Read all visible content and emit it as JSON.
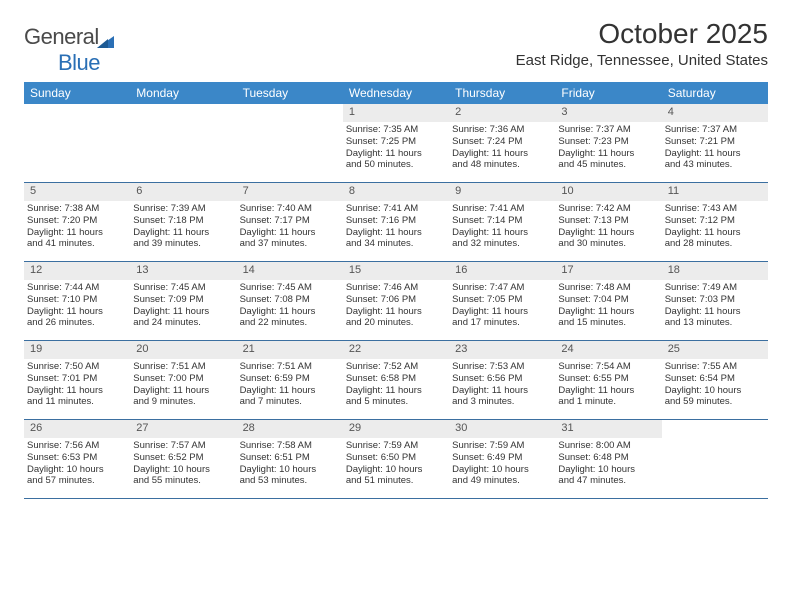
{
  "colors": {
    "header_bg": "#3b87c8",
    "header_text": "#ffffff",
    "daynum_bg": "#ececec",
    "week_border": "#3b6fa0",
    "body_text": "#333333",
    "logo_gray": "#4a4a4a",
    "logo_blue": "#2a6fb5",
    "background": "#ffffff"
  },
  "logo": {
    "text_part1": "General",
    "text_part2": "Blue"
  },
  "title": "October 2025",
  "location": "East Ridge, Tennessee, United States",
  "weekdays": [
    "Sunday",
    "Monday",
    "Tuesday",
    "Wednesday",
    "Thursday",
    "Friday",
    "Saturday"
  ],
  "weeks": [
    [
      null,
      null,
      null,
      {
        "n": "1",
        "sr": "Sunrise: 7:35 AM",
        "ss": "Sunset: 7:25 PM",
        "dl1": "Daylight: 11 hours",
        "dl2": "and 50 minutes."
      },
      {
        "n": "2",
        "sr": "Sunrise: 7:36 AM",
        "ss": "Sunset: 7:24 PM",
        "dl1": "Daylight: 11 hours",
        "dl2": "and 48 minutes."
      },
      {
        "n": "3",
        "sr": "Sunrise: 7:37 AM",
        "ss": "Sunset: 7:23 PM",
        "dl1": "Daylight: 11 hours",
        "dl2": "and 45 minutes."
      },
      {
        "n": "4",
        "sr": "Sunrise: 7:37 AM",
        "ss": "Sunset: 7:21 PM",
        "dl1": "Daylight: 11 hours",
        "dl2": "and 43 minutes."
      }
    ],
    [
      {
        "n": "5",
        "sr": "Sunrise: 7:38 AM",
        "ss": "Sunset: 7:20 PM",
        "dl1": "Daylight: 11 hours",
        "dl2": "and 41 minutes."
      },
      {
        "n": "6",
        "sr": "Sunrise: 7:39 AM",
        "ss": "Sunset: 7:18 PM",
        "dl1": "Daylight: 11 hours",
        "dl2": "and 39 minutes."
      },
      {
        "n": "7",
        "sr": "Sunrise: 7:40 AM",
        "ss": "Sunset: 7:17 PM",
        "dl1": "Daylight: 11 hours",
        "dl2": "and 37 minutes."
      },
      {
        "n": "8",
        "sr": "Sunrise: 7:41 AM",
        "ss": "Sunset: 7:16 PM",
        "dl1": "Daylight: 11 hours",
        "dl2": "and 34 minutes."
      },
      {
        "n": "9",
        "sr": "Sunrise: 7:41 AM",
        "ss": "Sunset: 7:14 PM",
        "dl1": "Daylight: 11 hours",
        "dl2": "and 32 minutes."
      },
      {
        "n": "10",
        "sr": "Sunrise: 7:42 AM",
        "ss": "Sunset: 7:13 PM",
        "dl1": "Daylight: 11 hours",
        "dl2": "and 30 minutes."
      },
      {
        "n": "11",
        "sr": "Sunrise: 7:43 AM",
        "ss": "Sunset: 7:12 PM",
        "dl1": "Daylight: 11 hours",
        "dl2": "and 28 minutes."
      }
    ],
    [
      {
        "n": "12",
        "sr": "Sunrise: 7:44 AM",
        "ss": "Sunset: 7:10 PM",
        "dl1": "Daylight: 11 hours",
        "dl2": "and 26 minutes."
      },
      {
        "n": "13",
        "sr": "Sunrise: 7:45 AM",
        "ss": "Sunset: 7:09 PM",
        "dl1": "Daylight: 11 hours",
        "dl2": "and 24 minutes."
      },
      {
        "n": "14",
        "sr": "Sunrise: 7:45 AM",
        "ss": "Sunset: 7:08 PM",
        "dl1": "Daylight: 11 hours",
        "dl2": "and 22 minutes."
      },
      {
        "n": "15",
        "sr": "Sunrise: 7:46 AM",
        "ss": "Sunset: 7:06 PM",
        "dl1": "Daylight: 11 hours",
        "dl2": "and 20 minutes."
      },
      {
        "n": "16",
        "sr": "Sunrise: 7:47 AM",
        "ss": "Sunset: 7:05 PM",
        "dl1": "Daylight: 11 hours",
        "dl2": "and 17 minutes."
      },
      {
        "n": "17",
        "sr": "Sunrise: 7:48 AM",
        "ss": "Sunset: 7:04 PM",
        "dl1": "Daylight: 11 hours",
        "dl2": "and 15 minutes."
      },
      {
        "n": "18",
        "sr": "Sunrise: 7:49 AM",
        "ss": "Sunset: 7:03 PM",
        "dl1": "Daylight: 11 hours",
        "dl2": "and 13 minutes."
      }
    ],
    [
      {
        "n": "19",
        "sr": "Sunrise: 7:50 AM",
        "ss": "Sunset: 7:01 PM",
        "dl1": "Daylight: 11 hours",
        "dl2": "and 11 minutes."
      },
      {
        "n": "20",
        "sr": "Sunrise: 7:51 AM",
        "ss": "Sunset: 7:00 PM",
        "dl1": "Daylight: 11 hours",
        "dl2": "and 9 minutes."
      },
      {
        "n": "21",
        "sr": "Sunrise: 7:51 AM",
        "ss": "Sunset: 6:59 PM",
        "dl1": "Daylight: 11 hours",
        "dl2": "and 7 minutes."
      },
      {
        "n": "22",
        "sr": "Sunrise: 7:52 AM",
        "ss": "Sunset: 6:58 PM",
        "dl1": "Daylight: 11 hours",
        "dl2": "and 5 minutes."
      },
      {
        "n": "23",
        "sr": "Sunrise: 7:53 AM",
        "ss": "Sunset: 6:56 PM",
        "dl1": "Daylight: 11 hours",
        "dl2": "and 3 minutes."
      },
      {
        "n": "24",
        "sr": "Sunrise: 7:54 AM",
        "ss": "Sunset: 6:55 PM",
        "dl1": "Daylight: 11 hours",
        "dl2": "and 1 minute."
      },
      {
        "n": "25",
        "sr": "Sunrise: 7:55 AM",
        "ss": "Sunset: 6:54 PM",
        "dl1": "Daylight: 10 hours",
        "dl2": "and 59 minutes."
      }
    ],
    [
      {
        "n": "26",
        "sr": "Sunrise: 7:56 AM",
        "ss": "Sunset: 6:53 PM",
        "dl1": "Daylight: 10 hours",
        "dl2": "and 57 minutes."
      },
      {
        "n": "27",
        "sr": "Sunrise: 7:57 AM",
        "ss": "Sunset: 6:52 PM",
        "dl1": "Daylight: 10 hours",
        "dl2": "and 55 minutes."
      },
      {
        "n": "28",
        "sr": "Sunrise: 7:58 AM",
        "ss": "Sunset: 6:51 PM",
        "dl1": "Daylight: 10 hours",
        "dl2": "and 53 minutes."
      },
      {
        "n": "29",
        "sr": "Sunrise: 7:59 AM",
        "ss": "Sunset: 6:50 PM",
        "dl1": "Daylight: 10 hours",
        "dl2": "and 51 minutes."
      },
      {
        "n": "30",
        "sr": "Sunrise: 7:59 AM",
        "ss": "Sunset: 6:49 PM",
        "dl1": "Daylight: 10 hours",
        "dl2": "and 49 minutes."
      },
      {
        "n": "31",
        "sr": "Sunrise: 8:00 AM",
        "ss": "Sunset: 6:48 PM",
        "dl1": "Daylight: 10 hours",
        "dl2": "and 47 minutes."
      },
      null
    ]
  ]
}
